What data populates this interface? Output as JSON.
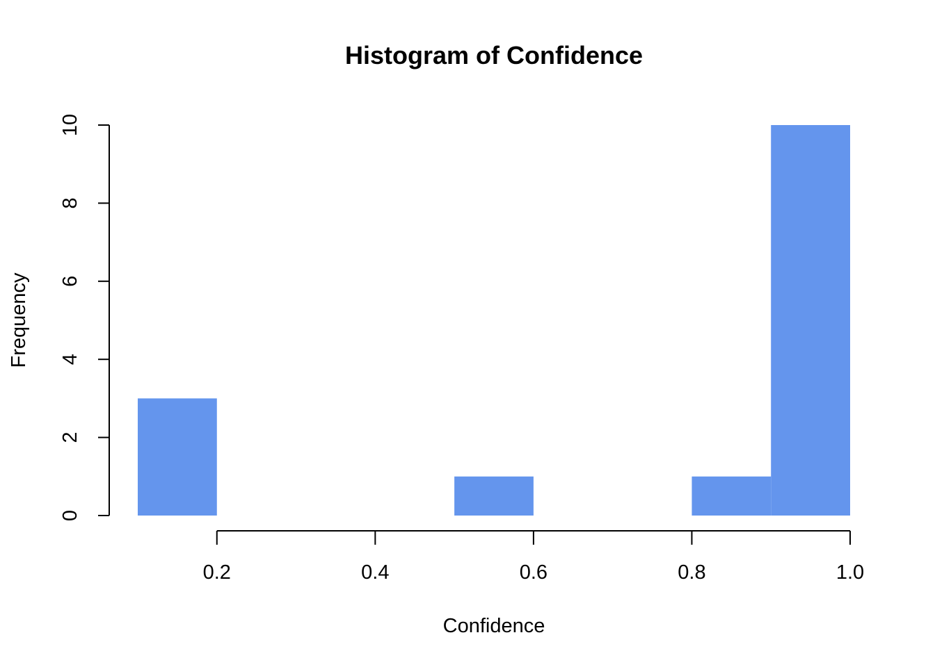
{
  "chart_data": {
    "type": "bar",
    "title": "Histogram of Confidence",
    "xlabel": "Confidence",
    "ylabel": "Frequency",
    "bins": [
      {
        "x0": 0.1,
        "x1": 0.2,
        "value": 3
      },
      {
        "x0": 0.2,
        "x1": 0.3,
        "value": 0
      },
      {
        "x0": 0.3,
        "x1": 0.4,
        "value": 0
      },
      {
        "x0": 0.4,
        "x1": 0.5,
        "value": 0
      },
      {
        "x0": 0.5,
        "x1": 0.6,
        "value": 1
      },
      {
        "x0": 0.6,
        "x1": 0.7,
        "value": 0
      },
      {
        "x0": 0.7,
        "x1": 0.8,
        "value": 0
      },
      {
        "x0": 0.8,
        "x1": 0.9,
        "value": 1
      },
      {
        "x0": 0.9,
        "x1": 1.0,
        "value": 10
      }
    ],
    "xlim": [
      0.1,
      1.0
    ],
    "ylim": [
      0,
      10
    ],
    "x_ticks": [
      0.2,
      0.4,
      0.6,
      0.8,
      1.0
    ],
    "x_tick_labels": [
      "0.2",
      "0.4",
      "0.6",
      "0.8",
      "1.0"
    ],
    "y_ticks": [
      0,
      2,
      4,
      6,
      8,
      10
    ],
    "y_tick_labels": [
      "0",
      "2",
      "4",
      "6",
      "8",
      "10"
    ],
    "bar_color": "#6495ED",
    "grid": false,
    "legend": "none"
  }
}
